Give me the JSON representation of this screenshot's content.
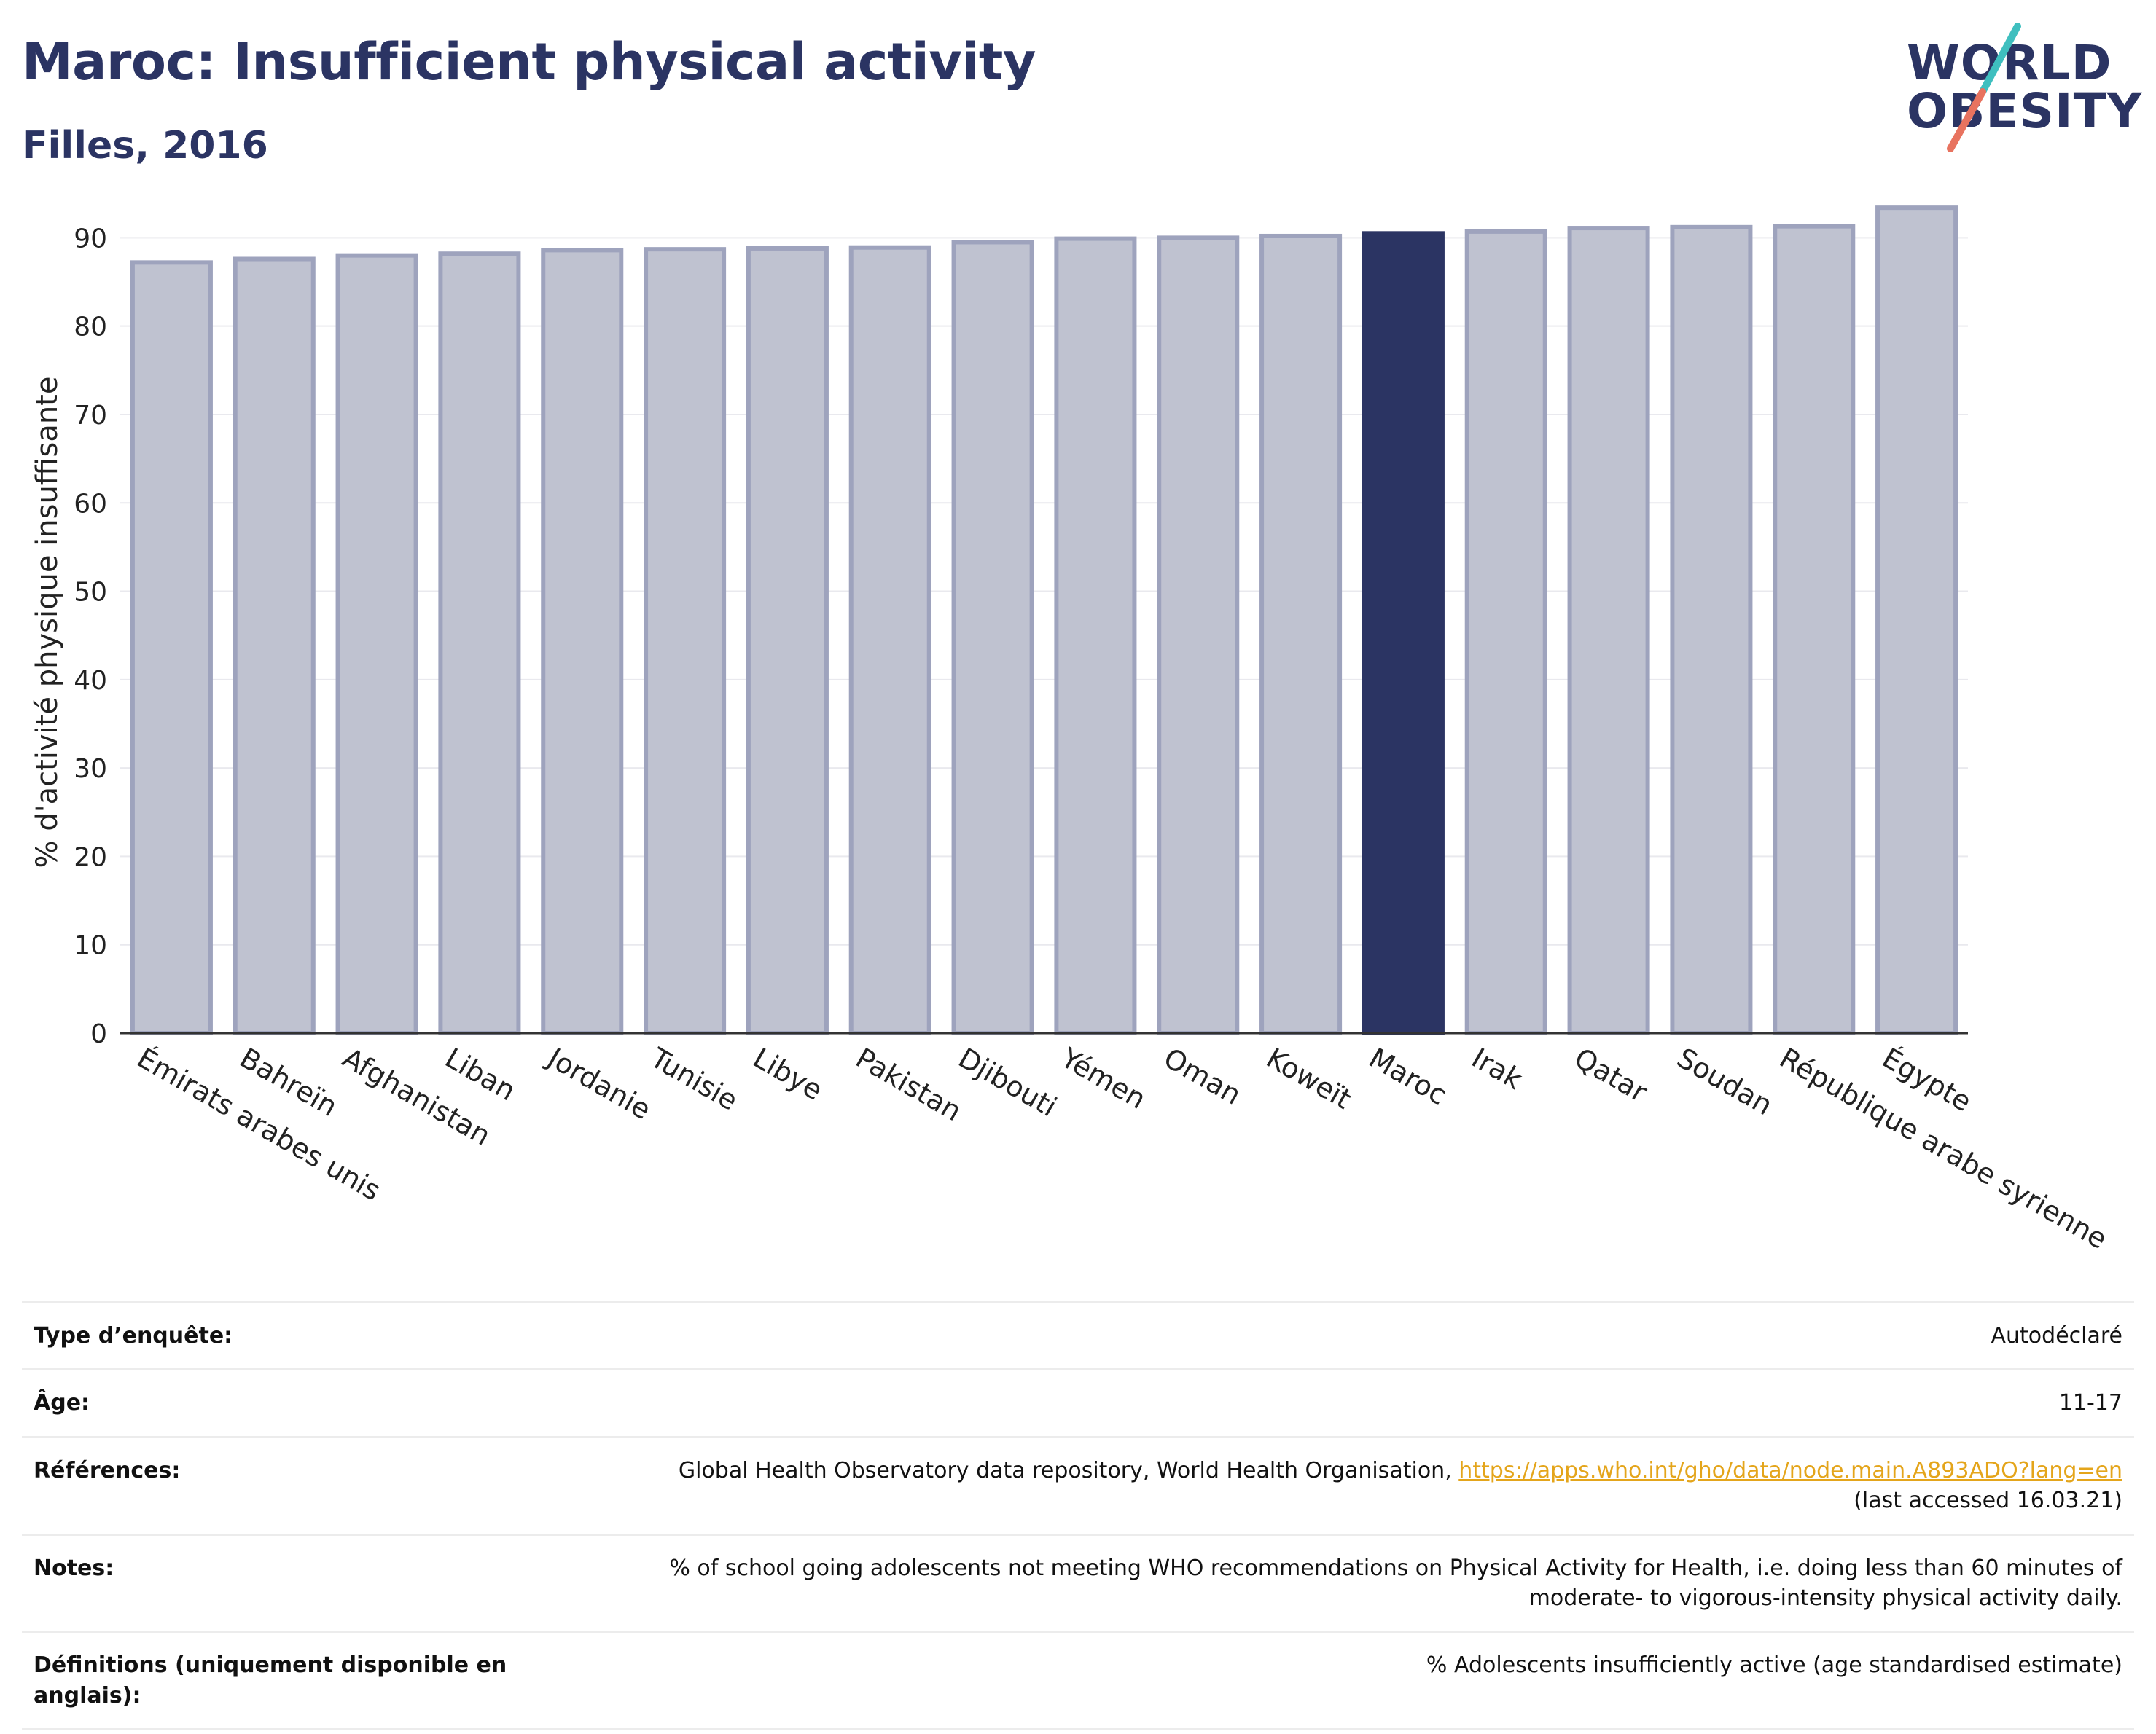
{
  "header": {
    "title": "Maroc: Insufficient physical activity",
    "subtitle": "Filles, 2016"
  },
  "logo": {
    "line1": "WORLD",
    "line2": "OBESITY"
  },
  "colors": {
    "highlight": "#2b3463",
    "bar": "#bfc2d0",
    "bar_edge": "#9ea3bd",
    "link": "#e4a51b"
  },
  "chart_data": {
    "type": "bar",
    "ylabel": "% d'activité physique insuffisante",
    "xlabel": "",
    "ylim": [
      0,
      93
    ],
    "yticks": [
      0,
      10,
      20,
      30,
      40,
      50,
      60,
      70,
      80,
      90
    ],
    "grid": true,
    "highlight": "Maroc",
    "categories": [
      "Émirats arabes unis",
      "Bahreïn",
      "Afghanistan",
      "Liban",
      "Jordanie",
      "Tunisie",
      "Libye",
      "Pakistan",
      "Djibouti",
      "Yémen",
      "Oman",
      "Koweït",
      "Maroc",
      "Irak",
      "Qatar",
      "Soudan",
      "République arabe syrienne",
      "Égypte"
    ],
    "values": [
      87.2,
      87.6,
      88.0,
      88.2,
      88.6,
      88.7,
      88.8,
      88.9,
      89.5,
      89.9,
      90.0,
      90.2,
      90.5,
      90.7,
      91.1,
      91.2,
      91.3,
      93.4
    ]
  },
  "table": {
    "rows": [
      {
        "key": "Type d’enquête:",
        "value": "Autodéclaré"
      },
      {
        "key": "Âge:",
        "value": "11-17"
      },
      {
        "key": "Références:",
        "value": "Global Health Observatory data repository, World Health Organisation, ",
        "link": "https://apps.who.int/gho/data/node.main.A893ADO?lang=en",
        "value2": "(last accessed 16.03.21)"
      },
      {
        "key": "Notes:",
        "value": "% of school going adolescents not meeting WHO recommendations on Physical Activity for Health, i.e. doing less than 60 minutes of",
        "value2": "moderate- to vigorous-intensity physical activity daily."
      },
      {
        "key": "Définitions (uniquement disponible en anglais):",
        "value": "% Adolescents insufficiently active (age standardised estimate)"
      }
    ]
  }
}
